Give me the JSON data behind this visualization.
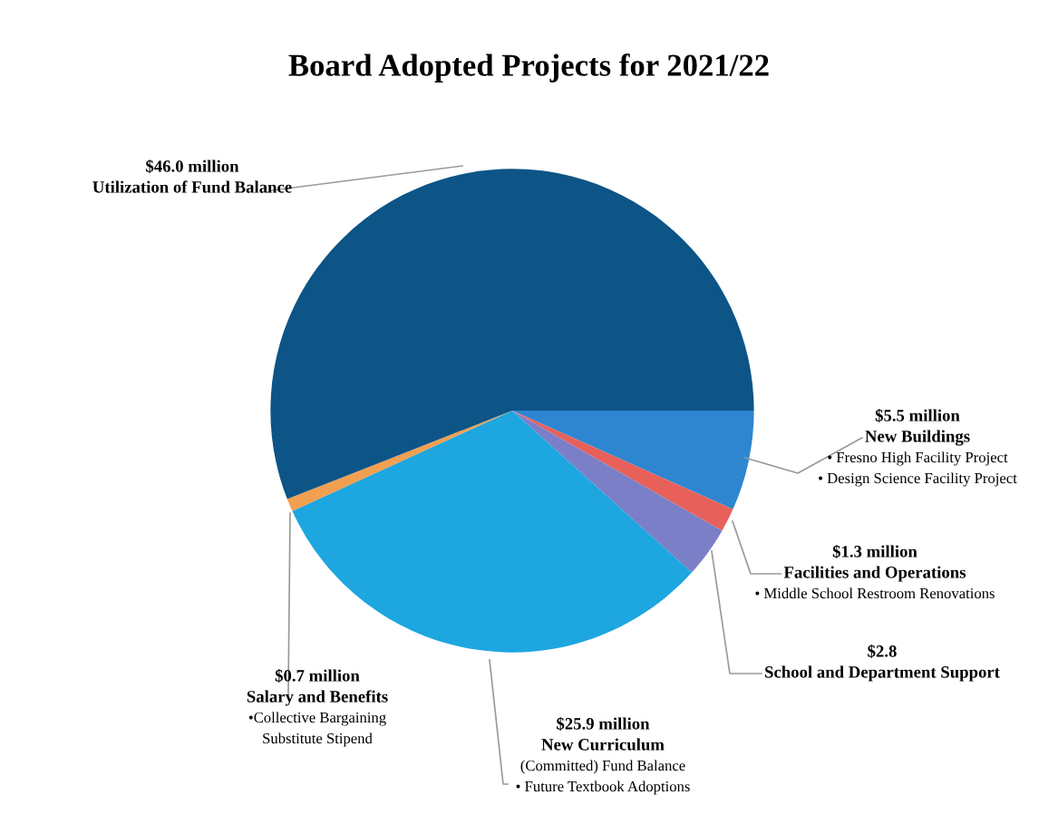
{
  "chart_data": {
    "type": "pie",
    "title": "Board Adopted Projects for 2021/22",
    "categories": [
      "New Buildings",
      "Facilities and Operations",
      "School and Department Support",
      "New Curriculum",
      "Salary and Benefits",
      "Utilization of Fund Balance"
    ],
    "values": [
      5.5,
      1.3,
      2.8,
      25.9,
      0.7,
      46.0
    ],
    "value_labels": [
      "$5.5 million",
      "$1.3 million",
      "$2.8",
      "$25.9 million",
      "$0.7 million",
      "$46.0 million"
    ],
    "colors": [
      "#2e86d0",
      "#e8605a",
      "#7a7fc7",
      "#1da6df",
      "#f0a050",
      "#0d5487"
    ],
    "annotations": [
      {
        "text": "• Fresno High Facility Project",
        "x": "New Buildings"
      },
      {
        "text": "• Design Science Facility Project",
        "x": "New Buildings"
      },
      {
        "text": "• Middle School Restroom Renovations",
        "x": "Facilities and Operations"
      },
      {
        "text": "(Committed) Fund Balance",
        "x": "New Curriculum"
      },
      {
        "text": "• Future Textbook Adoptions",
        "x": "New Curriculum"
      },
      {
        "text": "•Collective Bargaining",
        "x": "Salary and Benefits"
      },
      {
        "text": "Substitute Stipend",
        "x": "Salary and Benefits"
      }
    ],
    "legend": false
  }
}
